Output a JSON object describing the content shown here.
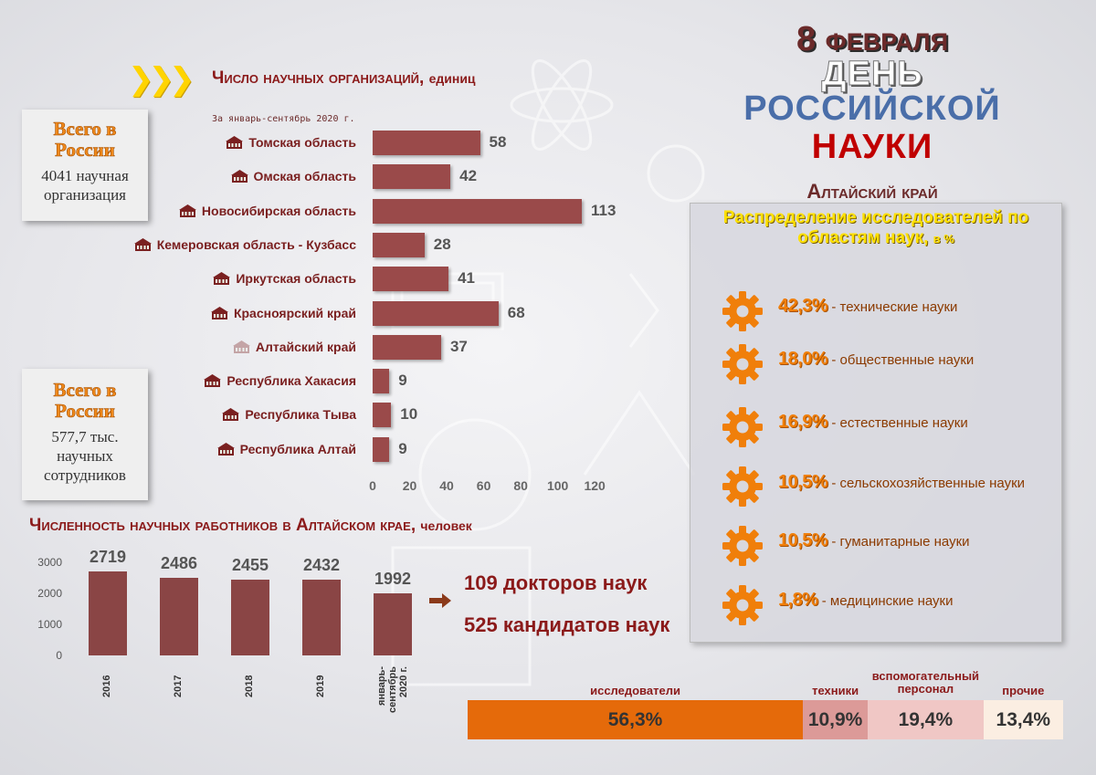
{
  "header": {
    "date": "8 февраля",
    "day": "ДЕНЬ",
    "russian": "РОССИЙСКОЙ",
    "science": "НАУКИ",
    "region": "Алтайский край"
  },
  "organizations_box": {
    "title": "Всего в России",
    "value": "4041 научная организация"
  },
  "workers_box": {
    "title": "Всего в России",
    "value": "577,7 тыс. научных сотрудников"
  },
  "doctors": "109 докторов наук",
  "candidates": "525 кандидатов наук",
  "distribution": {
    "title": "Распределение исследователей по областям наук,",
    "unit": "в %",
    "items": [
      {
        "pct": "42,3%",
        "label": "- технические науки"
      },
      {
        "pct": "18,0%",
        "label": "- общественные науки"
      },
      {
        "pct": "16,9%",
        "label": "- естественные науки"
      },
      {
        "pct": "10,5%",
        "label": "- сельскохозяйственные науки"
      },
      {
        "pct": "10,5%",
        "label": "- гуманитарные науки"
      },
      {
        "pct": "1,8%",
        "label": "- медицинские науки"
      }
    ]
  },
  "colors": {
    "bar": "#9a4a4a",
    "accent_orange": "#f07f0a",
    "title_red": "#8b1a1a",
    "seg_researchers": "#e56a0a",
    "seg_technicians": "#dc9a98",
    "seg_support": "#f0c7c5",
    "seg_other": "#fbeee2"
  },
  "icons": [
    "triple-chevron-icon",
    "building-icon",
    "gear-icon",
    "arrow-right-icon"
  ],
  "chart_data": [
    {
      "type": "bar",
      "orientation": "horizontal",
      "title": "Число научных организаций,",
      "unit": "единиц",
      "subtitle": "За январь-сентябрь 2020 г.",
      "categories": [
        "Томская область",
        "Омская область",
        "Новосибирская область",
        "Кемеровская область - Кузбасс",
        "Иркутская область",
        "Красноярский край",
        "Алтайский край",
        "Республика Хакасия",
        "Республика Тыва",
        "Республика Алтай"
      ],
      "values": [
        58,
        42,
        113,
        28,
        41,
        68,
        37,
        9,
        10,
        9
      ],
      "xlim": [
        0,
        120
      ],
      "xticks": [
        0,
        20,
        40,
        60,
        80,
        100,
        120
      ]
    },
    {
      "type": "bar",
      "title": "Численность научных работников в Алтайском крае,",
      "unit": "человек",
      "categories": [
        "2016",
        "2017",
        "2018",
        "2019",
        "январь-сентябрь 2020 г."
      ],
      "values": [
        2719,
        2486,
        2455,
        2432,
        1992
      ],
      "ylim": [
        0,
        3000
      ],
      "yticks": [
        0,
        1000,
        2000,
        3000
      ]
    },
    {
      "type": "bar",
      "orientation": "stacked-horizontal",
      "categories": [
        "исследователи",
        "техники",
        "вспомогательный персонал",
        "прочие"
      ],
      "values": [
        56.3,
        10.9,
        19.4,
        13.4
      ],
      "labels": [
        "56,3%",
        "10,9%",
        "19,4%",
        "13,4%"
      ]
    }
  ]
}
